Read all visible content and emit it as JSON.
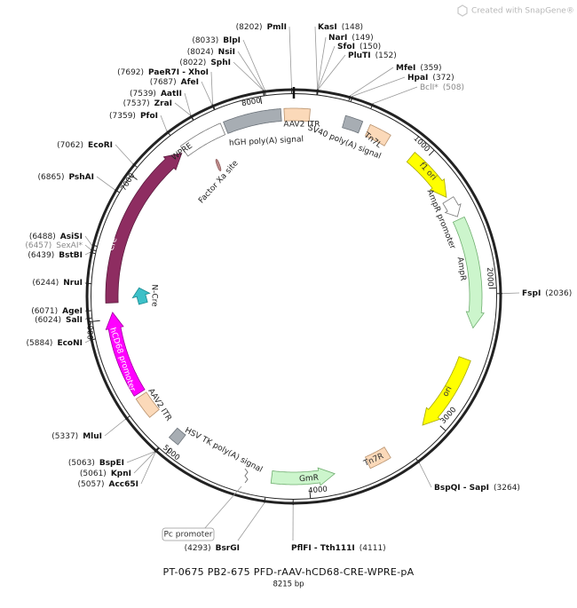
{
  "watermark": "Created with SnapGene®",
  "sites": [
    {
      "position": "(8202)",
      "name": "PmlI"
    },
    {
      "position": "(8033)",
      "name": "BlpI"
    },
    {
      "position": "(8024)",
      "name": "NsiI"
    },
    {
      "position": "(8022)",
      "name": "SphI"
    },
    {
      "position": "(7692)",
      "name": "PaeR7I - XhoI"
    },
    {
      "position": "(7687)",
      "name": "AfeI"
    },
    {
      "position": "(7539)",
      "name": "AatII"
    },
    {
      "position": "(7537)",
      "name": "ZraI"
    },
    {
      "position": "(7359)",
      "name": "PfoI"
    },
    {
      "position": "(7062)",
      "name": "EcoRI"
    },
    {
      "position": "(6865)",
      "name": "PshAI"
    },
    {
      "position": "(6488)",
      "name": "AsiSI"
    },
    {
      "position": "(6457)",
      "name": "SexAI*",
      "color": "#888888"
    },
    {
      "position": "(6439)",
      "name": "BstBI"
    },
    {
      "position": "(6244)",
      "name": "NruI"
    },
    {
      "position": "(6071)",
      "name": "AgeI"
    },
    {
      "position": "(6024)",
      "name": "SalI"
    },
    {
      "position": "(5884)",
      "name": "EcoNI"
    },
    {
      "position": "(5337)",
      "name": "MluI"
    },
    {
      "position": "(5063)",
      "name": "BspEI"
    },
    {
      "position": "(5061)",
      "name": "KpnI"
    },
    {
      "position": "(5057)",
      "name": "Acc65I"
    },
    {
      "position": "(4293)",
      "name": "BsrGI"
    },
    {
      "position": "(4111)",
      "name": "PflFI - Tth111I"
    },
    {
      "position": "(148)",
      "name": "KasI"
    },
    {
      "position": "(149)",
      "name": "NarI"
    },
    {
      "position": "(150)",
      "name": "SfoI"
    },
    {
      "position": "(152)",
      "name": "PluTI"
    },
    {
      "position": "(359)",
      "name": "MfeI"
    },
    {
      "position": "(372)",
      "name": "HpaI"
    },
    {
      "position": "(508)",
      "name": "BclI*",
      "color": "#888888"
    },
    {
      "position": "(2036)",
      "name": "FspI"
    },
    {
      "position": "(3264)",
      "name": "BspQI - SapI"
    }
  ],
  "features": [
    {
      "label": "AAV2 ITR"
    },
    {
      "label": "hGH poly(A) signal"
    },
    {
      "label": "SV40 poly(A) signal"
    },
    {
      "label": "Tn7L"
    },
    {
      "label": "f1 ori"
    },
    {
      "label": "AmpR promoter"
    },
    {
      "label": "AmpR"
    },
    {
      "label": "ori"
    },
    {
      "label": "Tn7R"
    },
    {
      "label": "GmR"
    },
    {
      "label": "HSV TK poly(A) signal"
    },
    {
      "label": "AAV2 ITR"
    },
    {
      "label": "hCD68 promoter"
    },
    {
      "label": "Cre"
    },
    {
      "label": "WPRE"
    },
    {
      "label": "Factor Xa site"
    },
    {
      "label": "N-Cre"
    },
    {
      "label": "Pc promoter"
    }
  ],
  "ticks": [
    "1000",
    "2000",
    "3000",
    "4000",
    "5000",
    "6000",
    "7000",
    "8000"
  ],
  "footer": {
    "title": "PT-0675   PB2-675   PFD-rAAV-hCD68-CRE-WPRE-pA",
    "length": "8215 bp"
  }
}
